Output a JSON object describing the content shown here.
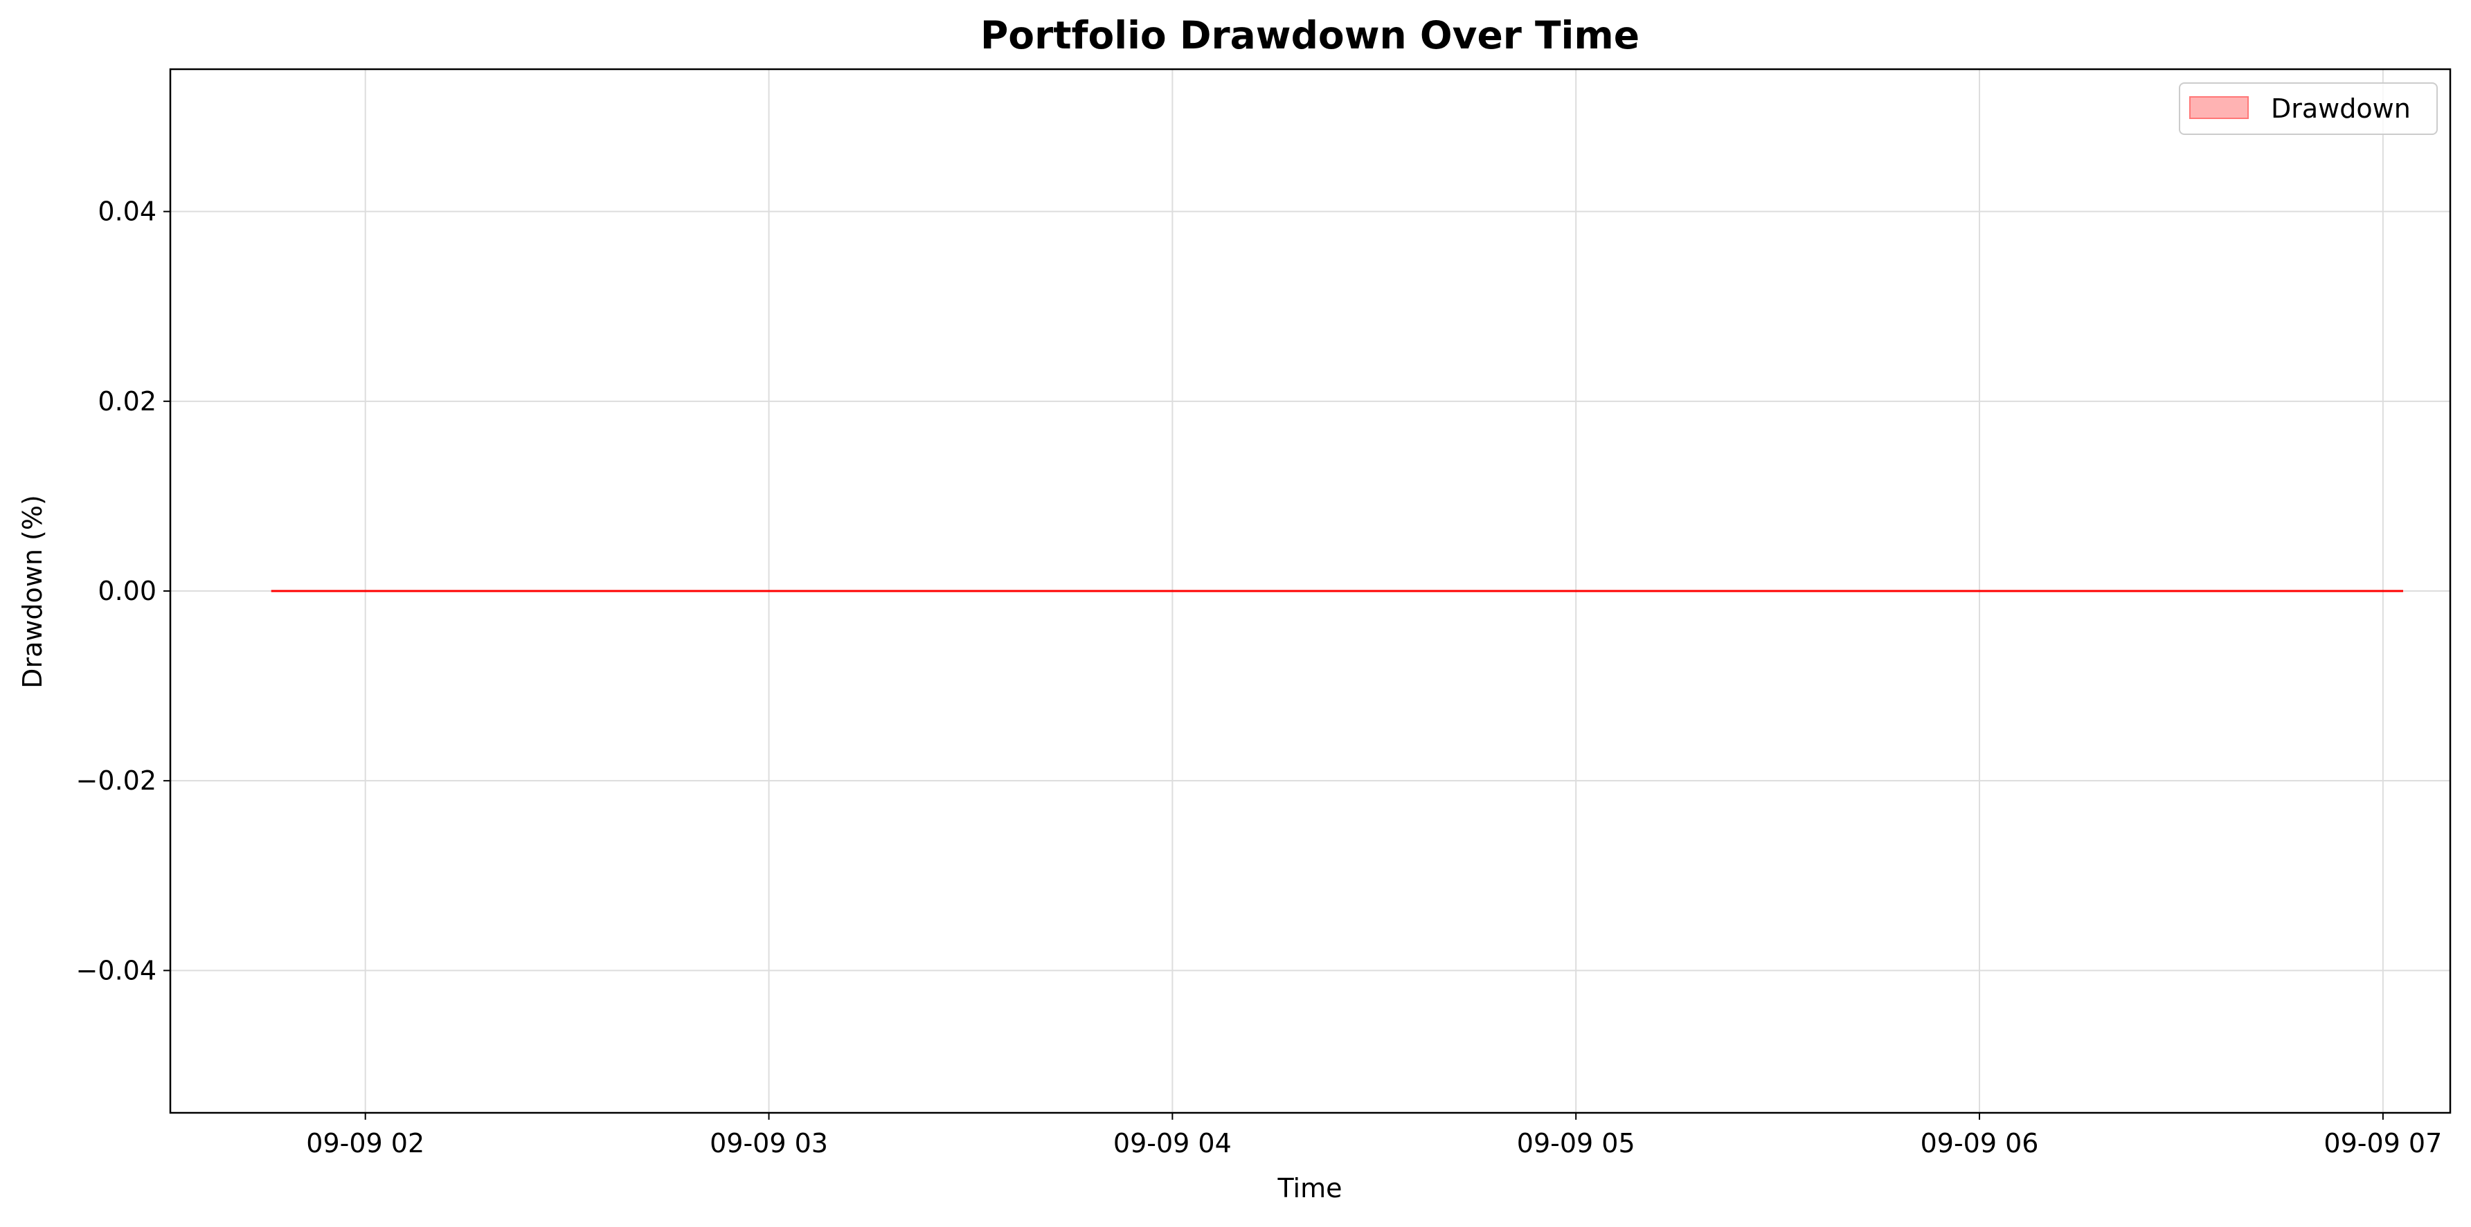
{
  "chart_data": {
    "type": "line",
    "title": "Portfolio Drawdown Over Time",
    "xlabel": "Time",
    "ylabel": "Drawdown (%)",
    "x_ticks": [
      "09-09 02",
      "09-09 03",
      "09-09 04",
      "09-09 05",
      "09-09 06",
      "09-09 07"
    ],
    "y_ticks": [
      "0.04",
      "0.02",
      "0.00",
      "−0.02",
      "−0.04"
    ],
    "y_tick_values": [
      0.04,
      0.02,
      0.0,
      -0.02,
      -0.04
    ],
    "ylim": [
      -0.055,
      0.055
    ],
    "xlim": [
      "09-09 01:31",
      "09-09 07:10"
    ],
    "grid": true,
    "legend": {
      "position": "top-right",
      "entries": [
        "Drawdown"
      ]
    },
    "series": [
      {
        "name": "Drawdown",
        "color": "#ff0000",
        "fill_color": "#ff9999",
        "x": [
          "09-09 01:46",
          "09-09 07:03"
        ],
        "values": [
          0.0,
          0.0
        ]
      }
    ]
  }
}
